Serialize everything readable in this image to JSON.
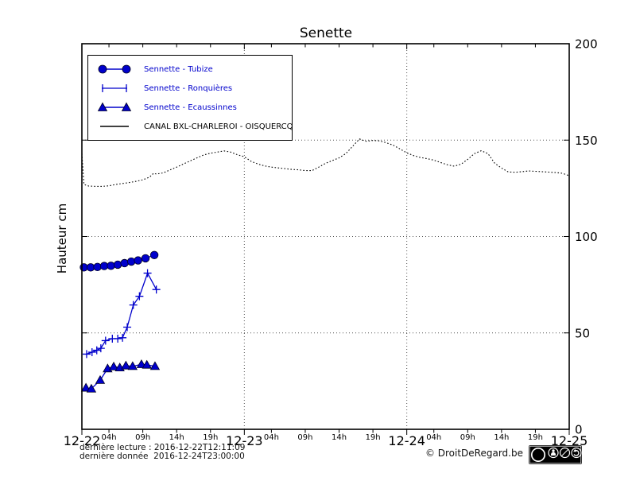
{
  "title": "Senette",
  "ylabel": "Hauteur cm",
  "footer": {
    "last_read": "dernière lecture : 2016-12-22T12:11:09",
    "last_data": "dernière donnée  2016-12-24T23:00:00",
    "copyright": "© DroitDeRegard.be",
    "license": {
      "label": "cc",
      "terms": [
        "BY",
        "NC",
        "SA"
      ]
    }
  },
  "colors": {
    "series_blue": "#0000cc",
    "canal_black": "#000000",
    "grid": "#555555"
  },
  "chart_data": {
    "type": "line",
    "title": "Senette",
    "xlabel": "",
    "ylabel": "Hauteur cm",
    "ylim": [
      0,
      200
    ],
    "xlim_hours": [
      0,
      72
    ],
    "grid": "dotted",
    "legend_position": "upper left",
    "yticks": [
      {
        "value": 0,
        "label": "0"
      },
      {
        "value": 50,
        "label": "50"
      },
      {
        "value": 100,
        "label": "100"
      },
      {
        "value": 150,
        "label": "150"
      },
      {
        "value": 200,
        "label": "200"
      }
    ],
    "ygrid": [
      50,
      100,
      150
    ],
    "xgrid_hours": [
      24,
      48
    ],
    "day_ticks": [
      {
        "hour": 0,
        "label": "12-22"
      },
      {
        "hour": 24,
        "label": "12-23"
      },
      {
        "hour": 48,
        "label": "12-24"
      },
      {
        "hour": 72,
        "label": "12-25"
      }
    ],
    "hour_ticks": [
      {
        "hour": 4,
        "label": "04h"
      },
      {
        "hour": 9,
        "label": "09h"
      },
      {
        "hour": 14,
        "label": "14h"
      },
      {
        "hour": 19,
        "label": "19h"
      },
      {
        "hour": 28,
        "label": "04h"
      },
      {
        "hour": 33,
        "label": "09h"
      },
      {
        "hour": 38,
        "label": "14h"
      },
      {
        "hour": 43,
        "label": "19h"
      },
      {
        "hour": 52,
        "label": "04h"
      },
      {
        "hour": 57,
        "label": "09h"
      },
      {
        "hour": 62,
        "label": "14h"
      },
      {
        "hour": 67,
        "label": "19h"
      }
    ],
    "series": [
      {
        "name": "Sennette - Tubize",
        "marker": "circle",
        "style": "solid",
        "color": "#0000cc",
        "points": [
          [
            0.3,
            84
          ],
          [
            1.3,
            84
          ],
          [
            2.3,
            84.2
          ],
          [
            3.3,
            84.7
          ],
          [
            4.3,
            84.8
          ],
          [
            5.3,
            85.4
          ],
          [
            6.3,
            86.2
          ],
          [
            7.3,
            87
          ],
          [
            8.3,
            87.6
          ],
          [
            9.4,
            88.7
          ],
          [
            10.7,
            90.4
          ]
        ]
      },
      {
        "name": "Sennette - Ronquières",
        "marker": "plus",
        "style": "solid",
        "color": "#0000cc",
        "points": [
          [
            0.7,
            39
          ],
          [
            1.5,
            40
          ],
          [
            2.2,
            41
          ],
          [
            2.8,
            42
          ],
          [
            3.5,
            46
          ],
          [
            4.5,
            47
          ],
          [
            5.3,
            47
          ],
          [
            6,
            47.5
          ],
          [
            6.7,
            53
          ],
          [
            7.6,
            64.5
          ],
          [
            8.5,
            69
          ],
          [
            9.7,
            81
          ],
          [
            11,
            72.5
          ]
        ]
      },
      {
        "name": "Sennette - Ecaussinnes",
        "marker": "triangle",
        "style": "solid",
        "color": "#0000cc",
        "points": [
          [
            0.6,
            21.5
          ],
          [
            1.4,
            21
          ],
          [
            2.7,
            25.5
          ],
          [
            3.8,
            31.5
          ],
          [
            4.7,
            32.5
          ],
          [
            5.6,
            32
          ],
          [
            6.5,
            33
          ],
          [
            7.5,
            32.7
          ],
          [
            8.8,
            33.7
          ],
          [
            9.6,
            33.4
          ],
          [
            10.8,
            32.7
          ]
        ]
      },
      {
        "name": "CANAL BXL-CHARLEROI - OISQUERCQ",
        "marker": "none",
        "style": "dotted",
        "color": "#000000",
        "points": [
          [
            0,
            143
          ],
          [
            0.3,
            127
          ],
          [
            1,
            126.2
          ],
          [
            2,
            126
          ],
          [
            3,
            126
          ],
          [
            4,
            126.3
          ],
          [
            5,
            127
          ],
          [
            6,
            127.5
          ],
          [
            7,
            128
          ],
          [
            8,
            128.6
          ],
          [
            9,
            129.4
          ],
          [
            10,
            130.8
          ],
          [
            10.6,
            132.8
          ],
          [
            11,
            132.4
          ],
          [
            12,
            133
          ],
          [
            13,
            134.5
          ],
          [
            14,
            136
          ],
          [
            15,
            137.6
          ],
          [
            16,
            139.2
          ],
          [
            17,
            140.8
          ],
          [
            18,
            142.3
          ],
          [
            19,
            143.2
          ],
          [
            20,
            143.8
          ],
          [
            21,
            144.4
          ],
          [
            22,
            143.8
          ],
          [
            23,
            142.4
          ],
          [
            24,
            141.4
          ],
          [
            25,
            139
          ],
          [
            26,
            137.6
          ],
          [
            27,
            136.6
          ],
          [
            28,
            136
          ],
          [
            29,
            135.6
          ],
          [
            30,
            135.2
          ],
          [
            31,
            134.8
          ],
          [
            32,
            134.6
          ],
          [
            33,
            134.2
          ],
          [
            34,
            134.2
          ],
          [
            35,
            136
          ],
          [
            36,
            138
          ],
          [
            37,
            139.4
          ],
          [
            38,
            140.8
          ],
          [
            39,
            143
          ],
          [
            40,
            146.8
          ],
          [
            41,
            150.6
          ],
          [
            42,
            149.4
          ],
          [
            43,
            149.8
          ],
          [
            44,
            149.6
          ],
          [
            45,
            148.6
          ],
          [
            46,
            147.4
          ],
          [
            47,
            145.4
          ],
          [
            48,
            143.4
          ],
          [
            49,
            142
          ],
          [
            50,
            141
          ],
          [
            51,
            140.4
          ],
          [
            52,
            139.6
          ],
          [
            53,
            138.4
          ],
          [
            54,
            137.2
          ],
          [
            55,
            136.5
          ],
          [
            56,
            137.5
          ],
          [
            57,
            140
          ],
          [
            58,
            143
          ],
          [
            59,
            144.5
          ],
          [
            60,
            143
          ],
          [
            61,
            138
          ],
          [
            62,
            135.5
          ],
          [
            63,
            133.5
          ],
          [
            64,
            133.3
          ],
          [
            65,
            133.6
          ],
          [
            66,
            134
          ],
          [
            67,
            133.8
          ],
          [
            68,
            133.6
          ],
          [
            69,
            133.4
          ],
          [
            70,
            133.2
          ],
          [
            71,
            132.8
          ],
          [
            72,
            131.5
          ]
        ]
      }
    ]
  }
}
